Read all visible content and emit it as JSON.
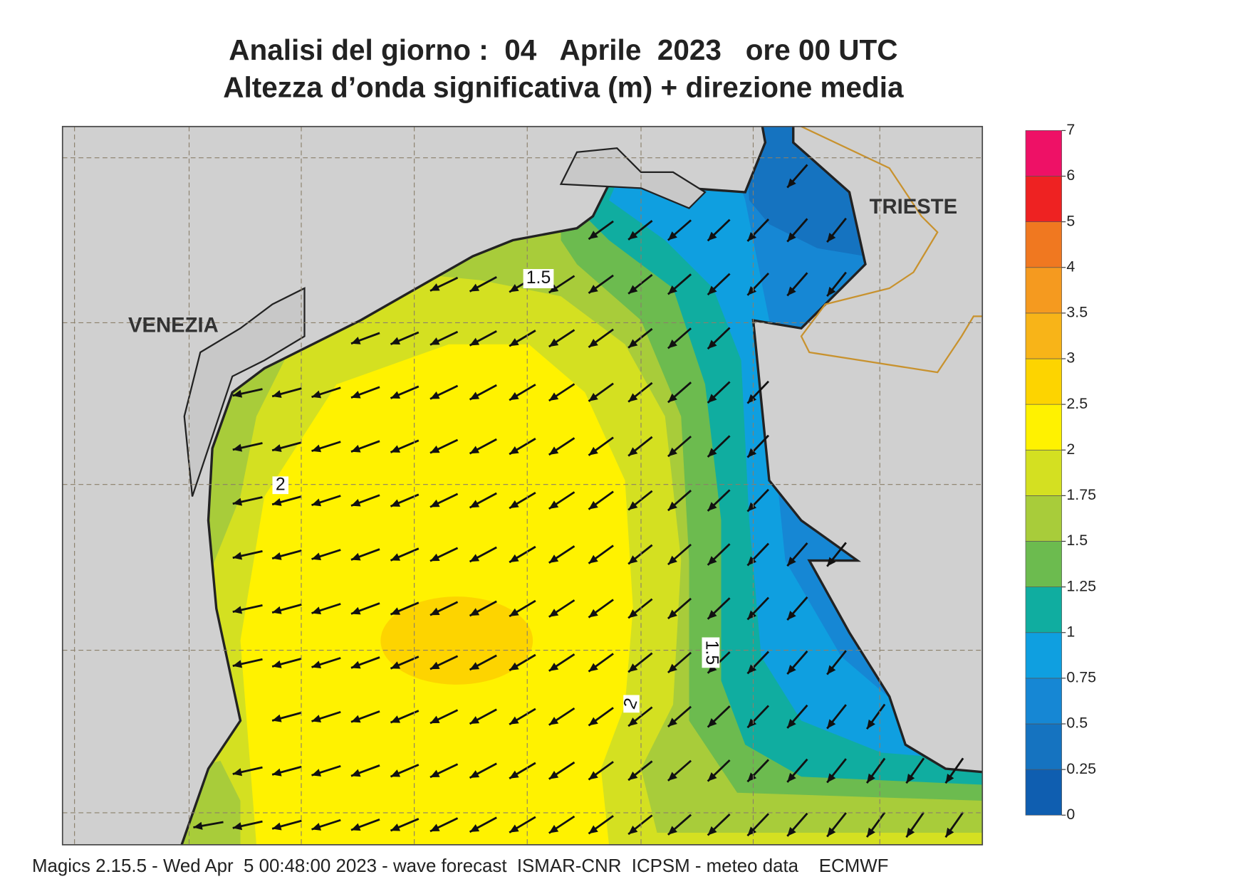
{
  "header": {
    "line1": "Analisi del giorno :  04   Aprile  2023   ore 00 UTC",
    "line2": "Altezza d’onda significativa (m) + direzione media"
  },
  "map": {
    "places": [
      "VENEZIA",
      "TRIESTE"
    ],
    "contour_labels": [
      1.5,
      2,
      1.5,
      2
    ]
  },
  "colorbar": {
    "levels": [
      0,
      0.25,
      0.5,
      0.75,
      1,
      1.25,
      1.5,
      1.75,
      2,
      2.5,
      3,
      3.5,
      4,
      5,
      6,
      7
    ],
    "colors": [
      "#0f5eb0",
      "#1573c0",
      "#1687d4",
      "#0f9fe0",
      "#10ada0",
      "#6cbb4f",
      "#a8cc3a",
      "#d4e021",
      "#fff200",
      "#fdd400",
      "#f8b418",
      "#f59a1f",
      "#f07820",
      "#ee2222",
      "#ee1166"
    ]
  },
  "footer": "Magics 2.15.5 - Wed Apr  5 00:48:00 2023 - wave forecast  ISMAR-CNR  ICPSM - meteo data    ECMWF"
}
